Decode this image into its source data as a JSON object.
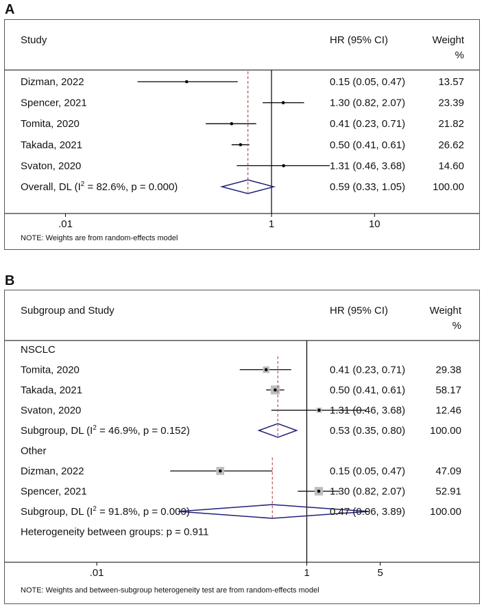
{
  "colors": {
    "ci_line": "#000000",
    "ref_line": "#000000",
    "overall_line": "#c0504d",
    "diamond": "#1f1f7a",
    "box_fill": "#bdbdbd",
    "panel_border": "#555555"
  },
  "chart_data": [
    {
      "type": "forest",
      "panel": "A",
      "col_study": "Study",
      "col_hr": "HR (95% CI)",
      "col_weight": "Weight",
      "col_weight_unit": "%",
      "x_scale": "log",
      "xlim": [
        0.0035,
        16
      ],
      "xticks": [
        ".01",
        "1",
        "10"
      ],
      "overall_hr": 0.59,
      "rows": [
        {
          "kind": "study",
          "label": "Dizman, 2022",
          "hr": 0.15,
          "lo": 0.05,
          "hi": 0.47,
          "ci_text": "0.15 (0.05, 0.47)",
          "weight_text": "13.57",
          "weight": 13.57
        },
        {
          "kind": "study",
          "label": "Spencer, 2021",
          "hr": 1.3,
          "lo": 0.82,
          "hi": 2.07,
          "ci_text": "1.30 (0.82, 2.07)",
          "weight_text": "23.39",
          "weight": 23.39
        },
        {
          "kind": "study",
          "label": "Tomita, 2020",
          "hr": 0.41,
          "lo": 0.23,
          "hi": 0.71,
          "ci_text": "0.41 (0.23, 0.71)",
          "weight_text": "21.82",
          "weight": 21.82
        },
        {
          "kind": "study",
          "label": "Takada, 2021",
          "hr": 0.5,
          "lo": 0.41,
          "hi": 0.61,
          "ci_text": "0.50 (0.41, 0.61)",
          "weight_text": "26.62",
          "weight": 26.62
        },
        {
          "kind": "study",
          "label": "Svaton, 2020",
          "hr": 1.31,
          "lo": 0.46,
          "hi": 3.68,
          "ci_text": "1.31 (0.46, 3.68)",
          "weight_text": "14.60",
          "weight": 14.6
        },
        {
          "kind": "overall",
          "label_pre": "Overall, DL (I",
          "sup": "2",
          "label_post": " = 82.6%, p = 0.000)",
          "hr": 0.59,
          "lo": 0.33,
          "hi": 1.05,
          "ci_text": "0.59 (0.33, 1.05)",
          "weight_text": "100.00"
        }
      ],
      "note": "NOTE: Weights are from random-effects model"
    },
    {
      "type": "forest",
      "panel": "B",
      "col_study": "Subgroup and Study",
      "col_hr": "HR (95% CI)",
      "col_weight": "Weight",
      "col_weight_unit": "%",
      "x_scale": "log",
      "xlim": [
        0.0018,
        7
      ],
      "xticks": [
        ".01",
        "1",
        "5"
      ],
      "rows": [
        {
          "kind": "group",
          "label": "NSCLC"
        },
        {
          "kind": "study",
          "label": "Tomita, 2020",
          "hr": 0.41,
          "lo": 0.23,
          "hi": 0.71,
          "ci_text": "0.41 (0.23, 0.71)",
          "weight_text": "29.38",
          "weight": 29.38
        },
        {
          "kind": "study",
          "label": "Takada, 2021",
          "hr": 0.5,
          "lo": 0.41,
          "hi": 0.61,
          "ci_text": "0.50 (0.41, 0.61)",
          "weight_text": "58.17",
          "weight": 58.17
        },
        {
          "kind": "study",
          "label": "Svaton, 2020",
          "hr": 1.31,
          "lo": 0.46,
          "hi": 3.68,
          "ci_text": "1.31 (0.46, 3.68)",
          "weight_text": "12.46",
          "weight": 12.46
        },
        {
          "kind": "subgroup",
          "label_pre": "Subgroup, DL (I",
          "sup": "2",
          "label_post": " = 46.9%, p = 0.152)",
          "hr": 0.53,
          "lo": 0.35,
          "hi": 0.8,
          "ci_text": "0.53 (0.35, 0.80)",
          "weight_text": "100.00"
        },
        {
          "kind": "group",
          "label": "Other"
        },
        {
          "kind": "study",
          "label": "Dizman, 2022",
          "hr": 0.15,
          "lo": 0.05,
          "hi": 0.47,
          "ci_text": "0.15 (0.05, 0.47)",
          "weight_text": "47.09",
          "weight": 47.09
        },
        {
          "kind": "study",
          "label": "Spencer, 2021",
          "hr": 1.3,
          "lo": 0.82,
          "hi": 2.07,
          "ci_text": "1.30 (0.82, 2.07)",
          "weight_text": "52.91",
          "weight": 52.91
        },
        {
          "kind": "subgroup",
          "label_pre": "Subgroup, DL (I",
          "sup": "2",
          "label_post": " = 91.8%, p = 0.000)",
          "hr": 0.47,
          "lo": 0.06,
          "hi": 3.89,
          "ci_text": "0.47 (0.06, 3.89)",
          "weight_text": "100.00"
        },
        {
          "kind": "text",
          "label": "Heterogeneity between groups: p = 0.911"
        }
      ],
      "note": "NOTE: Weights and between-subgroup heterogeneity test are from random-effects model"
    }
  ]
}
